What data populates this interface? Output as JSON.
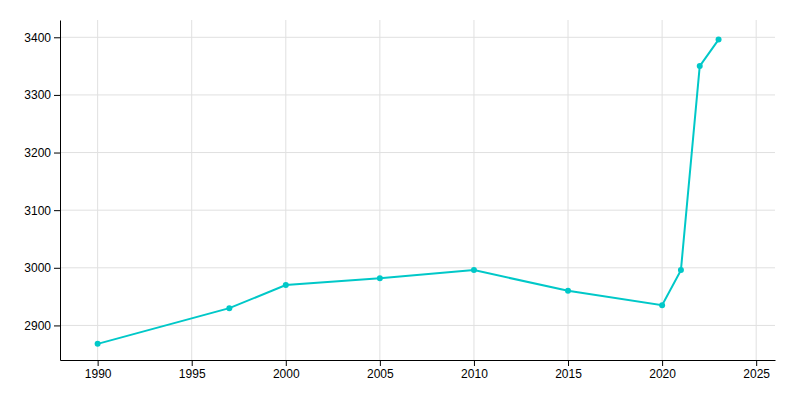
{
  "chart_data": {
    "type": "line",
    "x": [
      1990,
      1997,
      2000,
      2005,
      2010,
      2015,
      2020,
      2021,
      2022,
      2023
    ],
    "values": [
      2868,
      2930,
      2970,
      2982,
      2996,
      2960,
      2935,
      2996,
      3350,
      3396
    ],
    "color": "#00C8C8",
    "marker": "circle",
    "xlim": [
      1988,
      2026
    ],
    "ylim": [
      2840,
      3430
    ],
    "xticks": [
      1990,
      1995,
      2000,
      2005,
      2010,
      2015,
      2020,
      2025
    ],
    "yticks": [
      2900,
      3000,
      3100,
      3200,
      3300,
      3400
    ],
    "grid": true
  }
}
